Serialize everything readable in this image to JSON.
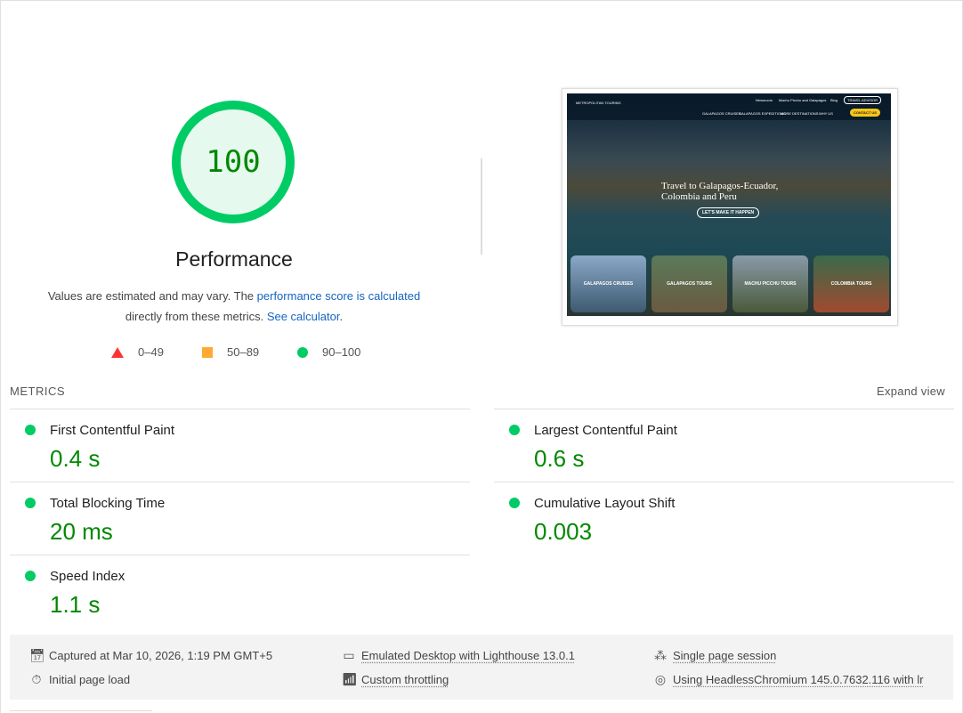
{
  "gauge": {
    "score": "100",
    "title": "Performance",
    "color": "#00cc66"
  },
  "description": {
    "text1": "Values are estimated and may vary. The ",
    "link1": "performance score is calculated",
    "text2": "directly from these metrics. ",
    "link2": "See calculator",
    "text3": "."
  },
  "legend": [
    {
      "icon": "triangle-red",
      "label": "0–49"
    },
    {
      "icon": "square-orange",
      "label": "50–89"
    },
    {
      "icon": "circle-green",
      "label": "90–100"
    }
  ],
  "screenshot": {
    "nav_items": [
      "GALAPAGOS CRUISES",
      "GALAPAGOS EXPEDITIONS",
      "MORE DESTINATIONS",
      "WHY US"
    ],
    "top_links": [
      "Newsroom",
      "Machu Picchu and Galapagos",
      "Blog"
    ],
    "travel_advisor": "TRAVEL ADVISOR",
    "contact": "CONTACT US",
    "logo": "METROPOLITAN TOURING",
    "headline": "Travel to Galapagos-Ecuador, Colombia and Peru",
    "cta": "LET'S MAKE IT HAPPEN",
    "cards": [
      "GALAPAGOS CRUISES",
      "GALAPAGOS TOURS",
      "MACHU PICCHU TOURS",
      "COLOMBIA TOURS"
    ]
  },
  "metrics": {
    "heading": "METRICS",
    "expand": "Expand view",
    "items": [
      {
        "label": "First Contentful Paint",
        "value": "0.4 s"
      },
      {
        "label": "Largest Contentful Paint",
        "value": "0.6 s"
      },
      {
        "label": "Total Blocking Time",
        "value": "20 ms"
      },
      {
        "label": "Cumulative Layout Shift",
        "value": "0.003"
      },
      {
        "label": "Speed Index",
        "value": "1.1 s"
      }
    ]
  },
  "footer": {
    "captured": "Captured at Mar 10, 2026, 1:19 PM GMT+5",
    "initial": "Initial page load",
    "emulated": "Emulated Desktop with Lighthouse 13.0.1",
    "throttling": "Custom throttling",
    "session": "Single page session",
    "browser": "Using HeadlessChromium 145.0.7632.116 with lr"
  }
}
